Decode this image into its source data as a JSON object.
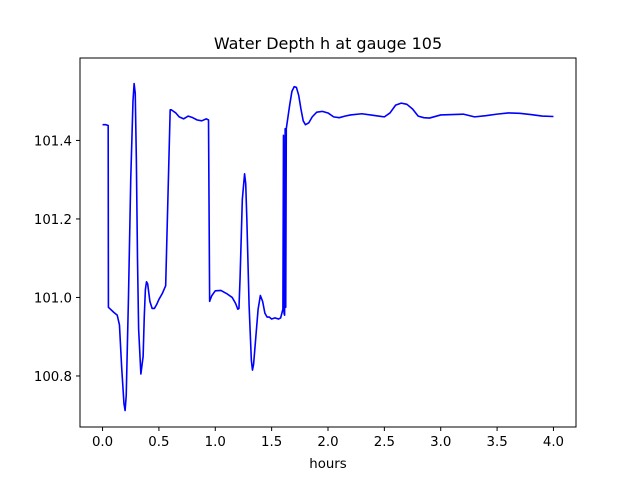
{
  "chart_data": {
    "type": "line",
    "title": "Water Depth h at gauge 105",
    "xlabel": "hours",
    "ylabel": "",
    "xlim": [
      -0.2,
      4.2
    ],
    "ylim": [
      100.67,
      101.61
    ],
    "grid": false,
    "x_ticks": [
      0.0,
      0.5,
      1.0,
      1.5,
      2.0,
      2.5,
      3.0,
      3.5,
      4.0
    ],
    "x_tick_labels": [
      "0.0",
      "0.5",
      "1.0",
      "1.5",
      "2.0",
      "2.5",
      "3.0",
      "3.5",
      "4.0"
    ],
    "y_ticks": [
      100.8,
      101.0,
      101.2,
      101.4
    ],
    "y_tick_labels": [
      "100.8",
      "101.0",
      "101.2",
      "101.4"
    ],
    "series": [
      {
        "color": "#0000ff",
        "x": [
          0.0,
          0.03,
          0.05,
          0.052,
          0.07,
          0.1,
          0.13,
          0.15,
          0.17,
          0.19,
          0.2,
          0.21,
          0.23,
          0.25,
          0.27,
          0.28,
          0.29,
          0.3,
          0.31,
          0.32,
          0.34,
          0.36,
          0.37,
          0.38,
          0.39,
          0.4,
          0.42,
          0.44,
          0.46,
          0.48,
          0.5,
          0.53,
          0.56,
          0.6,
          0.61,
          0.62,
          0.65,
          0.68,
          0.72,
          0.76,
          0.8,
          0.84,
          0.88,
          0.92,
          0.94,
          0.95,
          0.952,
          0.97,
          1.0,
          1.05,
          1.1,
          1.15,
          1.18,
          1.2,
          1.21,
          1.22,
          1.24,
          1.26,
          1.27,
          1.28,
          1.3,
          1.32,
          1.33,
          1.34,
          1.36,
          1.38,
          1.4,
          1.42,
          1.44,
          1.46,
          1.48,
          1.5,
          1.53,
          1.56,
          1.58,
          1.6,
          1.605,
          1.61,
          1.615,
          1.62,
          1.625,
          1.63,
          1.64,
          1.66,
          1.68,
          1.7,
          1.72,
          1.74,
          1.76,
          1.78,
          1.8,
          1.83,
          1.86,
          1.9,
          1.95,
          2.0,
          2.05,
          2.1,
          2.15,
          2.2,
          2.3,
          2.4,
          2.5,
          2.55,
          2.6,
          2.65,
          2.7,
          2.75,
          2.8,
          2.85,
          2.9,
          3.0,
          3.1,
          3.2,
          3.3,
          3.4,
          3.5,
          3.6,
          3.7,
          3.8,
          3.9,
          4.0
        ],
        "y": [
          101.44,
          101.44,
          101.438,
          100.975,
          100.97,
          100.962,
          100.955,
          100.93,
          100.82,
          100.73,
          100.712,
          100.75,
          101.0,
          101.3,
          101.5,
          101.545,
          101.52,
          101.35,
          101.1,
          100.92,
          100.805,
          100.85,
          100.95,
          101.02,
          101.04,
          101.035,
          100.99,
          100.972,
          100.972,
          100.982,
          100.995,
          101.01,
          101.03,
          101.478,
          101.478,
          101.476,
          101.47,
          101.46,
          101.455,
          101.462,
          101.458,
          101.452,
          101.45,
          101.455,
          101.452,
          100.99,
          100.992,
          101.005,
          101.017,
          101.018,
          101.01,
          101.0,
          100.985,
          100.97,
          100.972,
          101.05,
          101.25,
          101.315,
          101.29,
          101.2,
          100.98,
          100.84,
          100.815,
          100.83,
          100.9,
          100.97,
          101.005,
          100.99,
          100.96,
          100.95,
          100.95,
          100.945,
          100.948,
          100.945,
          100.948,
          100.97,
          101.413,
          100.96,
          100.955,
          101.43,
          100.975,
          101.43,
          101.45,
          101.49,
          101.525,
          101.537,
          101.535,
          101.515,
          101.48,
          101.45,
          101.44,
          101.445,
          101.46,
          101.472,
          101.474,
          101.47,
          101.46,
          101.458,
          101.462,
          101.465,
          101.468,
          101.464,
          101.46,
          101.47,
          101.49,
          101.495,
          101.492,
          101.48,
          101.462,
          101.458,
          101.457,
          101.465,
          101.466,
          101.467,
          101.46,
          101.463,
          101.467,
          101.47,
          101.469,
          101.466,
          101.462,
          101.461
        ]
      }
    ]
  }
}
